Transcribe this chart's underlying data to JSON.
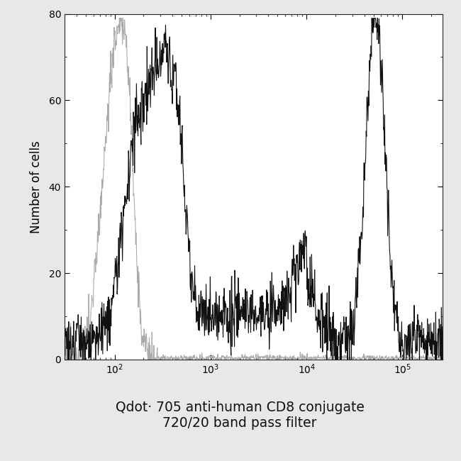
{
  "title_line1": "Qdot· 705 anti-human CD8 conjugate",
  "title_line2": "720/20 band pass filter",
  "ylabel": "Number of cells",
  "xlim_log": [
    30,
    262000
  ],
  "ylim": [
    0,
    80
  ],
  "yticks": [
    0,
    20,
    40,
    60,
    80
  ],
  "fig_bg_color": "#e8e8e8",
  "plot_bg_color": "#ffffff",
  "black_color": "#111111",
  "gray_color": "#aaaaaa",
  "line_width": 0.8,
  "title_fontsize": 13.5,
  "axis_label_fontsize": 12
}
